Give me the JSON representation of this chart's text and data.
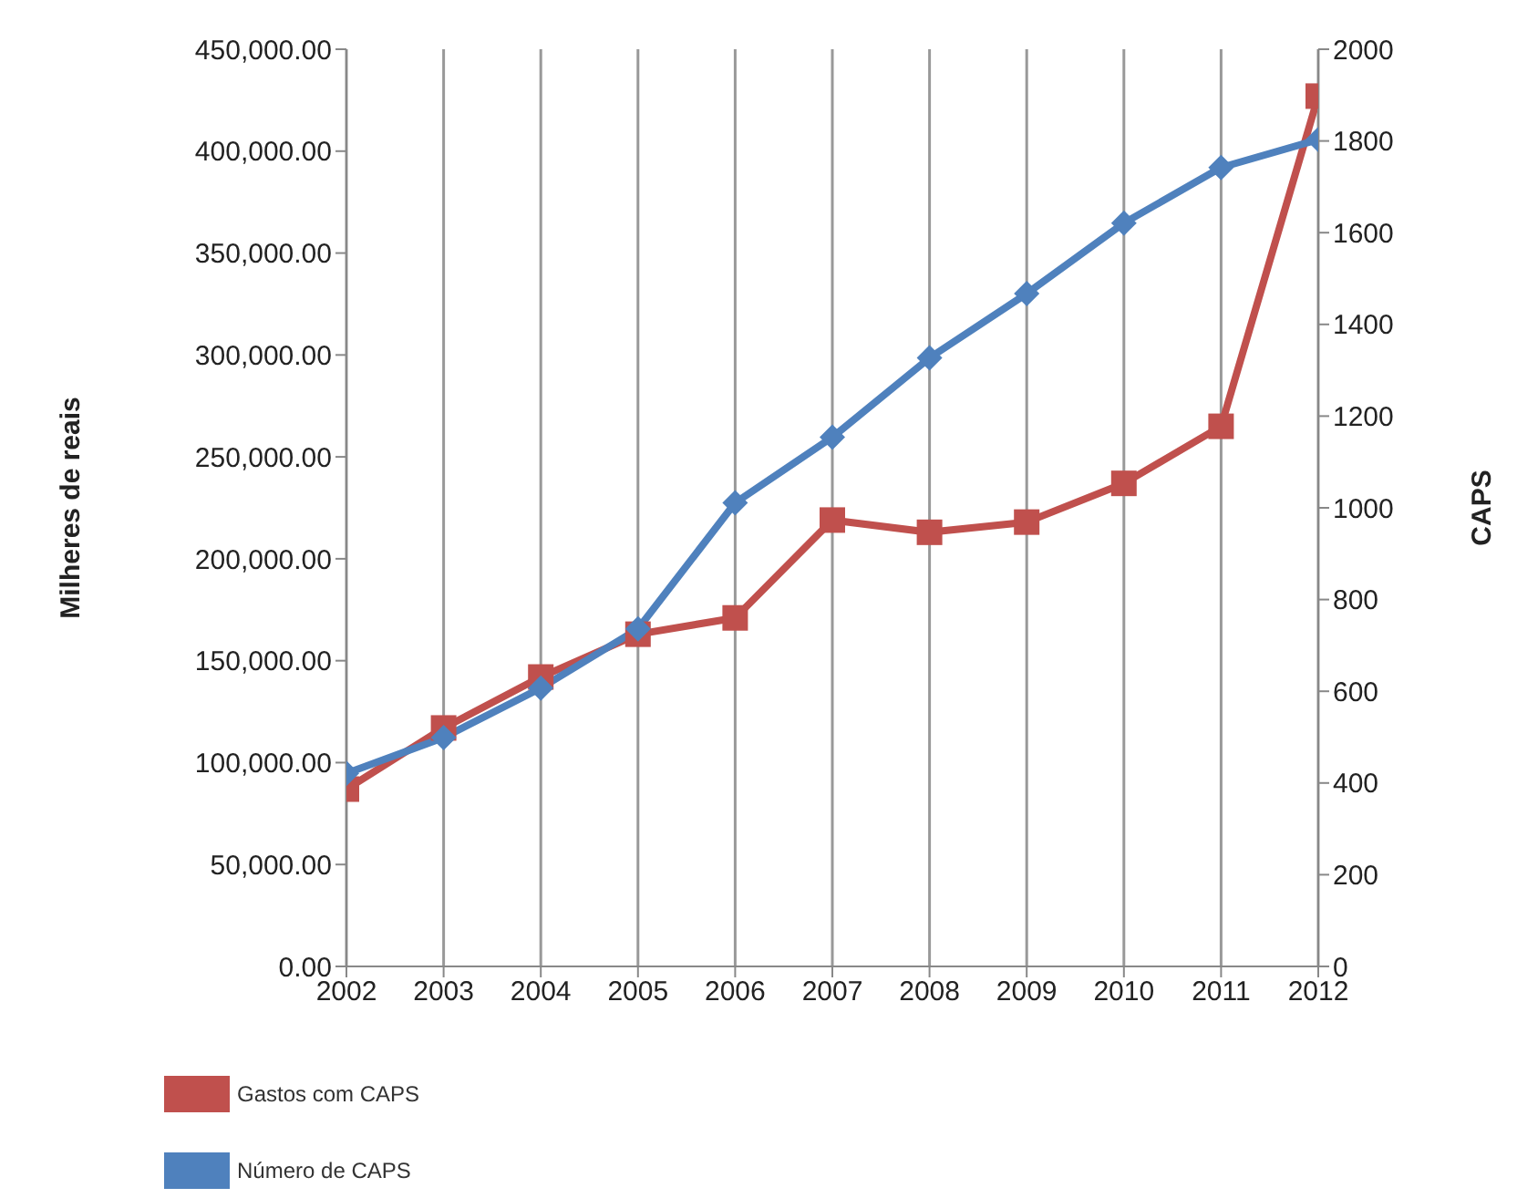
{
  "chart_data": {
    "type": "line",
    "ylabel": "Milheres de reais",
    "y2label": "CAPS",
    "categories": [
      "2002",
      "2003",
      "2004",
      "2005",
      "2006",
      "2007",
      "2008",
      "2009",
      "2010",
      "2011",
      "2012"
    ],
    "series": [
      {
        "name": "Gastos com CAPS",
        "color": "#c0504d",
        "marker": "square",
        "values": [
          87000,
          117000,
          142000,
          163000,
          171000,
          219000,
          213000,
          218000,
          237000,
          265000,
          427000
        ]
      },
      {
        "name": "Número de CAPS",
        "color": "#4f81bd",
        "marker": "diamond",
        "axis": "y2",
        "values": [
          421,
          499,
          607,
          736,
          1011,
          1154,
          1327,
          1467,
          1621,
          1742,
          1803
        ]
      }
    ],
    "ylim": [
      0,
      450000
    ],
    "yticks": [
      {
        "value": 0,
        "label": "0.00"
      },
      {
        "value": 50000,
        "label": "50,000.00"
      },
      {
        "value": 100000,
        "label": "100,000.00"
      },
      {
        "value": 150000,
        "label": "150,000.00"
      },
      {
        "value": 200000,
        "label": "200,000.00"
      },
      {
        "value": 250000,
        "label": "250,000.00"
      },
      {
        "value": 300000,
        "label": "300,000.00"
      },
      {
        "value": 350000,
        "label": "350,000.00"
      },
      {
        "value": 400000,
        "label": "400,000.00"
      },
      {
        "value": 450000,
        "label": "450,000.00"
      }
    ],
    "y2lim": [
      0,
      2000
    ],
    "y2ticks": [
      0,
      200,
      400,
      600,
      800,
      1000,
      1200,
      1400,
      1600,
      1800,
      2000
    ],
    "grid": "x",
    "legend": "bottom left",
    "line_style": "solid"
  }
}
